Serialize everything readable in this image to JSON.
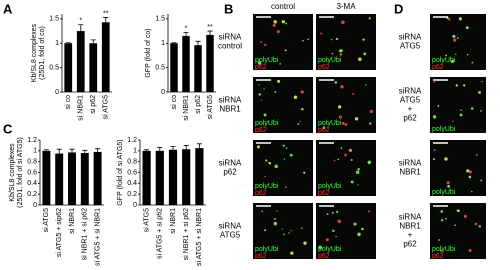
{
  "panel_labels": [
    "A",
    "B",
    "C",
    "D"
  ],
  "chart_data": [
    {
      "type": "bar",
      "ylabel": [
        "Kb/SL8 complexes",
        "(25D1, fold of co)"
      ],
      "categories": [
        "si co",
        "si NBR1",
        "si p62",
        "si ATG5"
      ],
      "values": [
        1,
        1.25,
        1.0,
        1.43
      ],
      "errors": [
        0.01,
        0.13,
        0.07,
        0.1
      ],
      "significance": [
        null,
        "*",
        null,
        "**"
      ],
      "color": "#000000",
      "ylim": [
        0,
        1.6
      ],
      "yticks": [
        0,
        0.5,
        1,
        1.5
      ]
    },
    {
      "type": "bar",
      "ylabel": [
        "GFP (fold of co)"
      ],
      "categories": [
        "si co",
        "si NBR1",
        "si p62",
        "si ATG5"
      ],
      "values": [
        1,
        1.15,
        0.96,
        1.17
      ],
      "errors": [
        0.01,
        0.07,
        0.08,
        0.08
      ],
      "significance": [
        null,
        "*",
        null,
        "**"
      ],
      "color": "#000000",
      "ylim": [
        0,
        1.6
      ],
      "yticks": [
        0,
        0.5,
        1,
        1.5
      ]
    },
    {
      "type": "bar",
      "ylabel": [
        "Kb/SL8 complexes",
        "(25D1, fold of si ATG5)"
      ],
      "categories": [
        "si ATG5",
        "si ATG5 + sip62",
        "si NBR1",
        "si NBR1 + si p62",
        "si ATG5 + si NBR1"
      ],
      "values": [
        1,
        0.95,
        0.97,
        0.96,
        0.98
      ],
      "errors": [
        0.02,
        0.08,
        0.06,
        0.05,
        0.06
      ],
      "significance": [
        null,
        null,
        null,
        null,
        null
      ],
      "color": "#000000",
      "ylim": [
        0,
        1.2
      ],
      "yticks": [
        0,
        0.2,
        0.4,
        0.6,
        0.8,
        1,
        1.2
      ]
    },
    {
      "type": "bar",
      "ylabel": [
        "GFP (fold of si ATG5)"
      ],
      "categories": [
        "si ATG5",
        "si ATG5 + si p62",
        "si NBR1",
        "si NBR1 + si p62",
        "si ATG5 + si NBR1"
      ],
      "values": [
        1,
        1.0,
        1.02,
        1.03,
        1.05
      ],
      "errors": [
        0.02,
        0.06,
        0.06,
        0.07,
        0.08
      ],
      "significance": [
        null,
        null,
        null,
        null,
        null
      ],
      "color": "#000000",
      "ylim": [
        0,
        1.2
      ],
      "yticks": [
        0,
        0.2,
        0.4,
        0.6,
        0.8,
        1,
        1.2
      ]
    }
  ],
  "microscopy": {
    "channels": [
      "polyUbi",
      "p62"
    ],
    "B": {
      "columns": [
        "control",
        "3-MA"
      ],
      "rows": [
        [
          "siRNA",
          "control"
        ],
        [
          "siRNA",
          "NBR1"
        ],
        [
          "siRNA",
          "p62"
        ],
        [
          "siRNA",
          "ATG5"
        ]
      ]
    },
    "D": {
      "rows": [
        [
          "siRNA",
          "ATG5"
        ],
        [
          "siRNA",
          "ATG5",
          "+",
          "p62"
        ],
        [
          "siRNA",
          "NBR1"
        ],
        [
          "siRNA",
          "NBR1",
          "+",
          "p62"
        ]
      ],
      "shows_p62": [
        true,
        false,
        false,
        true
      ]
    }
  }
}
